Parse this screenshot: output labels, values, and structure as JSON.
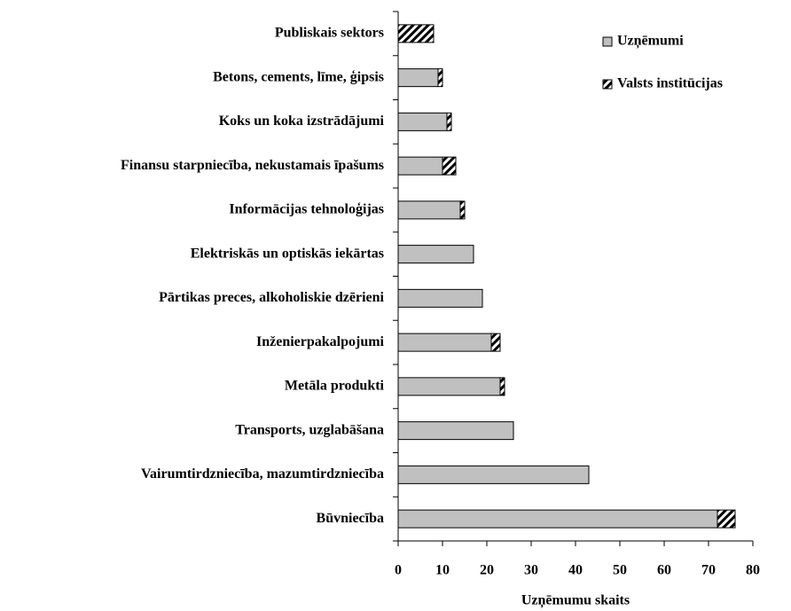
{
  "chart_data": {
    "type": "stacked_barh",
    "xlabel": "Uzņēmumu skaits",
    "categories": [
      "Publiskais sektors",
      "Betons, cements, līme, ģipsis",
      "Koks un koka izstrādājumi",
      "Finansu starpniecība, nekustamais īpašums",
      "Informācijas tehnoloģijas",
      "Elektriskās un optiskās iekārtas",
      "Pārtikas preces, alkoholiskie dzērieni",
      "Inženierpakalpojumi",
      "Metāla produkti",
      "Transports, uzglabāšana",
      "Vairumtirdzniecība, mazumtirdzniecība",
      "Būvniecība"
    ],
    "series": [
      {
        "name": "Uzņēmumi",
        "color": "#c0c0c0",
        "values": [
          0,
          9,
          11,
          10,
          14,
          17,
          19,
          21,
          23,
          26,
          43,
          72
        ]
      },
      {
        "name": "Valsts institūcijas",
        "color": "#000000",
        "pattern": "diagonal",
        "values": [
          8,
          1,
          1,
          3,
          1,
          0,
          0,
          2,
          1,
          0,
          0,
          4
        ]
      }
    ],
    "xlim": [
      0,
      80
    ],
    "xticks": [
      0,
      10,
      20,
      30,
      40,
      50,
      60,
      70,
      80
    ],
    "legend": "upper right"
  }
}
